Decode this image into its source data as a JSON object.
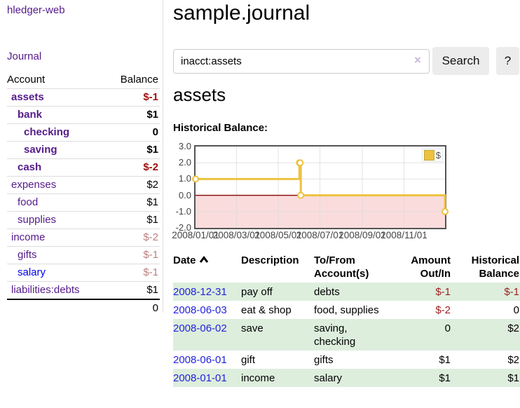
{
  "colors": {
    "brand_purple": "#551A8B",
    "link_blue": "#0000EE",
    "date_link_blue": "#2222dd",
    "negative_dark": "#9e1010",
    "negative_soft": "#bd7f7f",
    "stripe_green": "#ddeedd",
    "series_gold": "#edc240"
  },
  "sidebar": {
    "brand": "hledger-web",
    "nav_journal": "Journal",
    "account_header": "Account",
    "balance_header": "Balance",
    "accounts": [
      {
        "name": "assets",
        "balance": "$-1"
      },
      {
        "name": "bank",
        "balance": "$1"
      },
      {
        "name": "checking",
        "balance": "0"
      },
      {
        "name": "saving",
        "balance": "$1"
      },
      {
        "name": "cash",
        "balance": "$-2"
      },
      {
        "name": "expenses",
        "balance": "$2"
      },
      {
        "name": "food",
        "balance": "$1"
      },
      {
        "name": "supplies",
        "balance": "$1"
      },
      {
        "name": "income",
        "balance": "$-2"
      },
      {
        "name": "gifts",
        "balance": "$-1"
      },
      {
        "name": "salary",
        "balance": "$-1"
      },
      {
        "name": "liabilities:debts",
        "balance": "$1"
      }
    ],
    "total": "0"
  },
  "header": {
    "title": "sample.journal"
  },
  "search": {
    "value": "inacct:assets",
    "clear_label": "×",
    "button_label": "Search",
    "help_label": "?"
  },
  "account_page": {
    "heading": "assets",
    "chart_label": "Historical Balance:"
  },
  "chart_data": {
    "type": "line",
    "step": true,
    "title": "Historical Balance",
    "legend": "$",
    "x": [
      "2008-01-01",
      "2008-06-01",
      "2008-06-02",
      "2008-06-03",
      "2008-12-31"
    ],
    "y": [
      1,
      2,
      2,
      0,
      -1
    ],
    "xrange": [
      "2008-01-01",
      "2008-12-31"
    ],
    "ylim": [
      -2,
      3
    ],
    "yticks": [
      "3.0",
      "2.0",
      "1.0",
      "0.0",
      "-1.0",
      "-2.0"
    ],
    "xticks": [
      "2008/01/01",
      "2008/03/01",
      "2008/05/01",
      "2008/07/01",
      "2008/09/01",
      "2008/11/01"
    ],
    "series_color": "#edc240",
    "grid_color": "#dcdcdc",
    "negative_region_color": "#fbdcdc",
    "zero_line_color": "#8b1515"
  },
  "register": {
    "headers": {
      "date": "Date",
      "description": "Description",
      "accounts": "To/From Account(s)",
      "amount": "Amount Out/In",
      "balance": "Historical Balance"
    },
    "rows": [
      {
        "date": "2008-12-31",
        "description": "pay off",
        "accounts": "debts",
        "amount": "$-1",
        "balance": "$-1"
      },
      {
        "date": "2008-06-03",
        "description": "eat & shop",
        "accounts": "food, supplies",
        "amount": "$-2",
        "balance": "0"
      },
      {
        "date": "2008-06-02",
        "description": "save",
        "accounts": "saving, checking",
        "amount": "0",
        "balance": "$2"
      },
      {
        "date": "2008-06-01",
        "description": "gift",
        "accounts": "gifts",
        "amount": "$1",
        "balance": "$2"
      },
      {
        "date": "2008-01-01",
        "description": "income",
        "accounts": "salary",
        "amount": "$1",
        "balance": "$1"
      }
    ]
  }
}
